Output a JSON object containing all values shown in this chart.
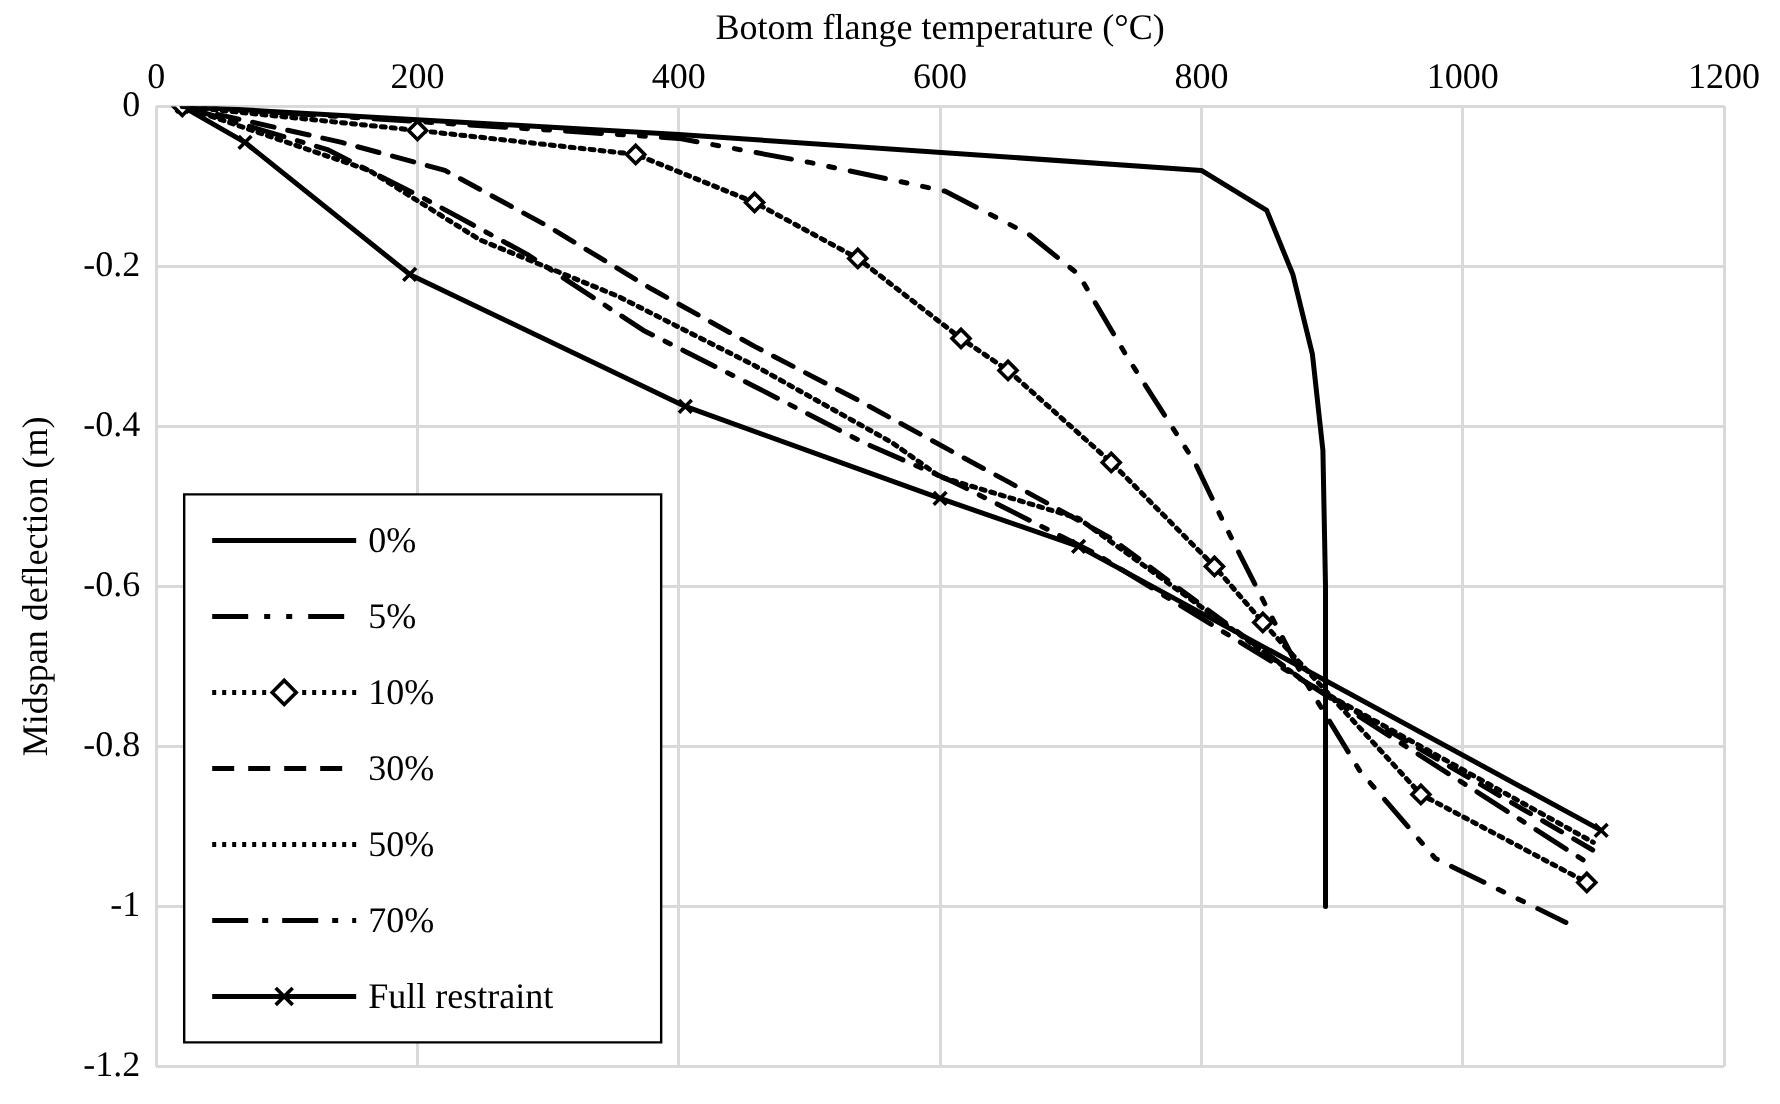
{
  "chart_data": {
    "type": "line",
    "xlabel": "Botom flange temperature (°C)",
    "ylabel": "Midspan deflection (m)",
    "xlim": [
      0,
      1200
    ],
    "xticks": [
      0,
      200,
      400,
      600,
      800,
      1000,
      1200
    ],
    "ylim": [
      -1.2,
      0
    ],
    "yticks": [
      -1.2,
      -1,
      -0.8,
      -0.6,
      -0.4,
      -0.2,
      0
    ],
    "grid": true,
    "legend": "bottom left",
    "series": [
      {
        "name": "0%",
        "color": "#000000",
        "line_style": "solid",
        "x": [
          20,
          400,
          800,
          850,
          870,
          885,
          893,
          895,
          895
        ],
        "values": [
          0,
          -0.035,
          -0.08,
          -0.13,
          -0.21,
          -0.31,
          -0.43,
          -0.6,
          -1.0
        ]
      },
      {
        "name": "5%",
        "color": "#000000",
        "line_style": "dashdotdot",
        "x": [
          20,
          400,
          500,
          604,
          668,
          706,
          742,
          795,
          817,
          848,
          880,
          921,
          979,
          1079
        ],
        "values": [
          0,
          -0.04,
          -0.07,
          -0.106,
          -0.16,
          -0.21,
          -0.31,
          -0.445,
          -0.52,
          -0.62,
          -0.72,
          -0.83,
          -0.94,
          -1.02
        ]
      },
      {
        "name": "10%",
        "color": "#000000",
        "line_style": "dotted",
        "marker": "diamond",
        "x": [
          20,
          200,
          367,
          458,
          537,
          616,
          652,
          731,
          810,
          847,
          968,
          1095
        ],
        "values": [
          0,
          -0.03,
          -0.06,
          -0.12,
          -0.19,
          -0.29,
          -0.33,
          -0.445,
          -0.575,
          -0.645,
          -0.86,
          -0.97
        ]
      },
      {
        "name": "30%",
        "color": "#000000",
        "line_style": "dashed",
        "x": [
          20,
          142,
          221,
          300,
          379,
          458,
          537,
          611,
          653,
          731,
          880,
          1100
        ],
        "values": [
          0,
          -0.045,
          -0.08,
          -0.15,
          -0.228,
          -0.3,
          -0.367,
          -0.433,
          -0.47,
          -0.54,
          -0.72,
          -0.93
        ]
      },
      {
        "name": "50%",
        "color": "#000000",
        "line_style": "dotted",
        "x": [
          20,
          163,
          248,
          353,
          458,
          563,
          600,
          706,
          880,
          1100
        ],
        "values": [
          0,
          -0.08,
          -0.167,
          -0.237,
          -0.324,
          -0.42,
          -0.463,
          -0.515,
          -0.72,
          -0.92
        ]
      },
      {
        "name": "70%",
        "color": "#000000",
        "line_style": "dashdot",
        "x": [
          20,
          131,
          205,
          284,
          373,
          458,
          541,
          611,
          720,
          880,
          1100
        ],
        "values": [
          0,
          -0.054,
          -0.115,
          -0.185,
          -0.28,
          -0.35,
          -0.42,
          -0.47,
          -0.56,
          -0.72,
          -0.95
        ]
      },
      {
        "name": "Full restraint",
        "color": "#000000",
        "line_style": "solid",
        "marker": "cross",
        "x": [
          20,
          68,
          194,
          405,
          600,
          706,
          1106
        ],
        "values": [
          0,
          -0.045,
          -0.21,
          -0.375,
          -0.49,
          -0.55,
          -0.905
        ]
      }
    ]
  }
}
